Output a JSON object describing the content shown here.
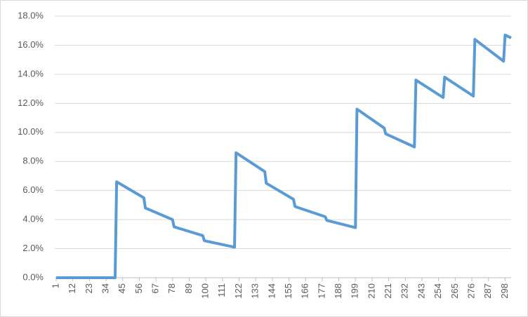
{
  "chart_data": {
    "type": "line",
    "x": [
      1,
      40,
      41,
      59,
      60,
      78,
      79,
      98,
      99,
      119,
      120,
      139,
      140,
      158,
      159,
      179,
      180,
      199,
      200,
      218,
      219,
      238,
      239,
      257,
      258,
      277,
      278,
      297,
      298,
      302
    ],
    "series": [
      {
        "color": "#5b9bd5",
        "values": [
          0,
          0,
          6.6,
          5.5,
          4.8,
          4.0,
          3.5,
          2.9,
          2.55,
          2.1,
          8.6,
          7.3,
          6.5,
          5.4,
          4.9,
          4.2,
          3.95,
          3.45,
          11.6,
          10.3,
          9.9,
          9.0,
          13.6,
          12.4,
          13.8,
          12.5,
          16.4,
          14.9,
          16.7,
          16.5
        ]
      }
    ],
    "xlim": [
      1,
      302
    ],
    "xticks": [
      1,
      12,
      23,
      34,
      45,
      56,
      67,
      78,
      89,
      100,
      111,
      122,
      133,
      144,
      155,
      166,
      177,
      188,
      199,
      210,
      221,
      232,
      243,
      254,
      265,
      276,
      287,
      298
    ],
    "ylim": [
      0,
      18
    ],
    "yticks": [
      {
        "value": 0,
        "label": "0.0%"
      },
      {
        "value": 2,
        "label": "2.0%"
      },
      {
        "value": 4,
        "label": "4.0%"
      },
      {
        "value": 6,
        "label": "6.0%"
      },
      {
        "value": 8,
        "label": "8.0%"
      },
      {
        "value": 10,
        "label": "10.0%"
      },
      {
        "value": 12,
        "label": "12.0%"
      },
      {
        "value": 14,
        "label": "14.0%"
      },
      {
        "value": 16,
        "label": "16.0%"
      },
      {
        "value": 18,
        "label": "18.0%"
      }
    ],
    "grid": true
  }
}
